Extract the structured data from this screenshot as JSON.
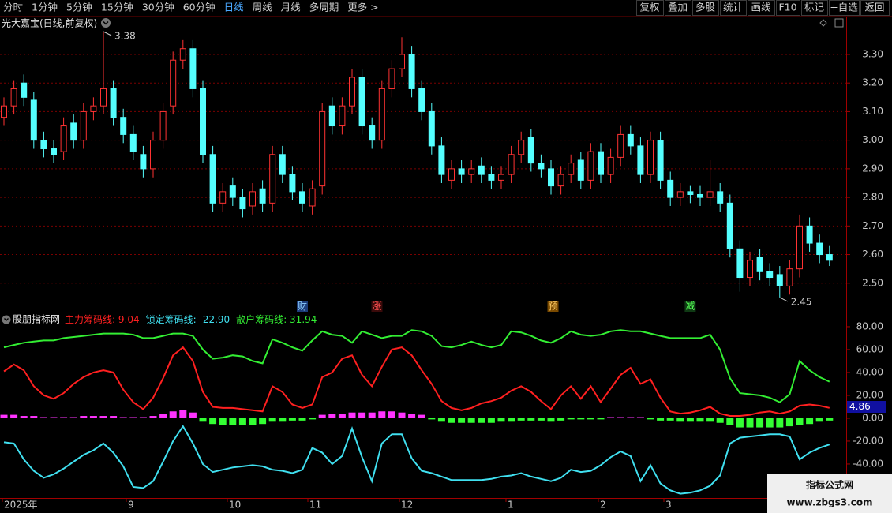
{
  "toolbar": {
    "left": [
      "分时",
      "1分钟",
      "5分钟",
      "15分钟",
      "30分钟",
      "60分钟",
      "日线",
      "周线",
      "月线",
      "多周期",
      "更多 >"
    ],
    "right": [
      "复权",
      "叠加",
      "多股",
      "统计",
      "画线",
      "F10",
      "标记",
      "+自选",
      "返回"
    ]
  },
  "chart_data": [
    {
      "type": "candlestick",
      "title": "光大嘉宝(日线,前复权)",
      "up_color": "#ff3232",
      "down_color": "#54ffff",
      "grid": true,
      "ylim": [
        2.4,
        3.38
      ],
      "yticks": [
        {
          "value": 2.5,
          "label": "2.50"
        },
        {
          "value": 2.6,
          "label": "2.60"
        },
        {
          "value": 2.7,
          "label": "2.70"
        },
        {
          "value": 2.8,
          "label": "2.80"
        },
        {
          "value": 2.9,
          "label": "2.90"
        },
        {
          "value": 3.0,
          "label": "3.00"
        },
        {
          "value": 3.1,
          "label": "3.10"
        },
        {
          "value": 3.2,
          "label": "3.20"
        },
        {
          "value": 3.3,
          "label": "3.30"
        }
      ],
      "open": [
        3.08,
        3.12,
        3.2,
        3.14,
        3.0,
        2.97,
        2.96,
        3.06,
        3.0,
        3.1,
        3.12,
        3.18,
        3.08,
        3.02,
        2.95,
        2.9,
        3.0,
        3.12,
        3.28,
        3.32,
        3.18,
        2.95,
        2.78,
        2.84,
        2.8,
        2.77,
        2.83,
        2.78,
        2.95,
        2.88,
        2.82,
        2.77,
        2.84,
        3.12,
        3.05,
        3.12,
        3.22,
        3.05,
        3.0,
        3.18,
        3.25,
        3.3,
        3.18,
        3.1,
        2.98,
        2.86,
        2.9,
        2.88,
        2.91,
        2.88,
        2.86,
        2.88,
        2.95,
        3.01,
        2.92,
        2.9,
        2.84,
        2.88,
        2.93,
        2.86,
        2.96,
        2.88,
        2.94,
        3.02,
        2.98,
        2.88,
        3.0,
        2.86,
        2.8,
        2.82,
        2.81,
        2.8,
        2.82,
        2.78,
        2.62,
        2.52,
        2.59,
        2.54,
        2.53,
        2.49,
        2.55,
        2.7,
        2.64,
        2.6
      ],
      "high": [
        3.15,
        3.21,
        3.23,
        3.17,
        3.03,
        3.0,
        3.08,
        3.09,
        3.13,
        3.15,
        3.38,
        3.21,
        3.11,
        3.05,
        2.98,
        3.03,
        3.13,
        3.31,
        3.35,
        3.35,
        3.21,
        2.98,
        2.85,
        2.87,
        2.83,
        2.85,
        2.86,
        2.98,
        2.98,
        2.91,
        2.85,
        2.86,
        3.13,
        3.15,
        3.15,
        3.25,
        3.25,
        3.08,
        3.21,
        3.28,
        3.36,
        3.33,
        3.21,
        3.13,
        3.01,
        2.93,
        2.93,
        2.93,
        2.94,
        2.91,
        2.91,
        2.98,
        3.03,
        3.04,
        2.95,
        2.93,
        2.91,
        2.95,
        2.96,
        2.99,
        2.99,
        2.97,
        3.05,
        3.05,
        3.01,
        3.03,
        3.03,
        2.89,
        2.85,
        2.84,
        2.84,
        2.93,
        2.85,
        2.81,
        2.65,
        2.61,
        2.62,
        2.57,
        2.56,
        2.58,
        2.74,
        2.73,
        2.67,
        2.63
      ],
      "low": [
        3.05,
        3.09,
        3.12,
        2.97,
        2.94,
        2.92,
        2.93,
        2.97,
        2.97,
        3.07,
        3.09,
        3.05,
        2.99,
        2.93,
        2.87,
        2.87,
        2.97,
        3.09,
        3.25,
        3.15,
        2.92,
        2.75,
        2.75,
        2.77,
        2.73,
        2.74,
        2.75,
        2.75,
        2.85,
        2.79,
        2.75,
        2.74,
        2.81,
        3.02,
        3.02,
        3.09,
        3.02,
        2.97,
        2.97,
        3.15,
        3.22,
        3.15,
        3.07,
        2.95,
        2.85,
        2.83,
        2.85,
        2.85,
        2.85,
        2.83,
        2.83,
        2.85,
        2.92,
        2.89,
        2.87,
        2.81,
        2.81,
        2.85,
        2.83,
        2.83,
        2.85,
        2.85,
        2.91,
        2.95,
        2.85,
        2.85,
        2.83,
        2.77,
        2.77,
        2.78,
        2.77,
        2.77,
        2.75,
        2.59,
        2.47,
        2.49,
        2.51,
        2.49,
        2.45,
        2.46,
        2.52,
        2.61,
        2.57,
        2.56
      ],
      "close": [
        3.12,
        3.18,
        3.15,
        3.0,
        2.97,
        2.95,
        3.05,
        3.0,
        3.1,
        3.12,
        3.18,
        3.08,
        3.02,
        2.96,
        2.9,
        3.0,
        3.1,
        3.28,
        3.32,
        3.18,
        2.95,
        2.78,
        2.82,
        2.8,
        2.76,
        2.82,
        2.78,
        2.95,
        2.88,
        2.82,
        2.78,
        2.83,
        3.1,
        3.05,
        3.12,
        3.22,
        3.05,
        3.0,
        3.18,
        3.25,
        3.3,
        3.18,
        3.1,
        2.98,
        2.88,
        2.9,
        2.88,
        2.9,
        2.88,
        2.86,
        2.88,
        2.95,
        3.0,
        2.92,
        2.9,
        2.84,
        2.88,
        2.92,
        2.86,
        2.96,
        2.88,
        2.94,
        3.02,
        2.98,
        2.88,
        3.0,
        2.86,
        2.8,
        2.82,
        2.81,
        2.8,
        2.82,
        2.78,
        2.62,
        2.52,
        2.58,
        2.54,
        2.52,
        2.49,
        2.55,
        2.7,
        2.64,
        2.6,
        2.58
      ],
      "max_label": 3.38,
      "min_label": 2.45,
      "events": [
        "财",
        "涨",
        "预",
        "减"
      ]
    },
    {
      "type": "line",
      "title": "股朋指标网",
      "grid": false,
      "ylim": [
        -69,
        91
      ],
      "yticks": [
        {
          "value": -40,
          "label": "-40.00"
        },
        {
          "value": -20,
          "label": "-20.00"
        },
        {
          "value": 0,
          "label": "0.00"
        },
        {
          "value": 20,
          "label": "20.00"
        },
        {
          "value": 40,
          "label": "40.00"
        },
        {
          "value": 60,
          "label": "60.00"
        },
        {
          "value": 80,
          "label": "80.00"
        }
      ],
      "series": [
        {
          "name": "主力筹码线",
          "color": "#ff2020",
          "current": 9.04,
          "values": [
            41,
            47,
            42,
            28,
            20,
            17,
            22,
            30,
            36,
            40,
            42,
            40,
            25,
            14,
            8,
            18,
            35,
            55,
            62,
            50,
            23,
            10,
            9,
            9,
            8,
            7,
            6,
            28,
            23,
            12,
            9,
            12,
            36,
            40,
            52,
            55,
            38,
            28,
            45,
            60,
            62,
            55,
            42,
            30,
            15,
            9,
            7,
            9,
            13,
            15,
            18,
            24,
            28,
            23,
            15,
            8,
            20,
            28,
            17,
            28,
            14,
            26,
            38,
            44,
            30,
            34,
            18,
            6,
            4,
            5,
            7,
            10,
            4,
            2,
            2,
            3,
            5,
            6,
            4,
            6,
            11,
            12,
            11,
            9.04
          ]
        },
        {
          "name": "锁定筹码线",
          "color": "#40e0f0",
          "current": {
            "value": -22.9,
            "label": "-22.90"
          },
          "values": [
            -21,
            -22,
            -36,
            -46,
            -52,
            -49,
            -44,
            -38,
            -32,
            -28,
            -22,
            -30,
            -42,
            -60,
            -61,
            -55,
            -38,
            -20,
            -7,
            -22,
            -40,
            -47,
            -45,
            -43,
            -42,
            -41,
            -42,
            -45,
            -46,
            -48,
            -45,
            -26,
            -30,
            -40,
            -33,
            -9,
            -34,
            -55,
            -22,
            -14,
            -14,
            -35,
            -46,
            -48,
            -51,
            -54,
            -54,
            -54,
            -54,
            -53,
            -51,
            -50,
            -48,
            -51,
            -53,
            -55,
            -52,
            -45,
            -47,
            -46,
            -41,
            -34,
            -29,
            -33,
            -55,
            -41,
            -57,
            -63,
            -66,
            -65,
            -63,
            -59,
            -50,
            -22,
            -17,
            -16,
            -15,
            -14,
            -14,
            -16,
            -36,
            -30,
            -26,
            -22.9
          ]
        },
        {
          "name": "散户筹码线",
          "color": "#33ee33",
          "current": 31.94,
          "values": [
            62,
            64,
            66,
            67,
            68,
            68,
            70,
            71,
            72,
            73,
            74,
            74,
            74,
            73,
            70,
            70,
            72,
            74,
            74,
            72,
            60,
            52,
            53,
            55,
            54,
            50,
            48,
            69,
            66,
            62,
            59,
            68,
            76,
            73,
            72,
            66,
            76,
            73,
            70,
            72,
            72,
            77,
            76,
            72,
            63,
            62,
            64,
            67,
            64,
            62,
            64,
            76,
            75,
            72,
            68,
            66,
            70,
            76,
            73,
            72,
            73,
            76,
            77,
            76,
            76,
            74,
            72,
            70,
            70,
            70,
            70,
            73,
            60,
            35,
            22,
            21,
            20,
            18,
            14,
            21,
            50,
            42,
            36,
            31.94
          ]
        }
      ],
      "bars": {
        "pos_color": "#ff33ff",
        "neg_color": "#33ff33",
        "values": [
          3,
          3,
          2,
          2,
          1,
          1,
          1,
          1,
          2,
          2,
          2,
          2,
          1,
          1,
          1,
          2,
          4,
          6,
          7,
          5,
          -3,
          -5,
          -6,
          -6,
          -6,
          -6,
          -5,
          -3,
          -3,
          -2,
          -2,
          -1,
          3,
          4,
          4,
          5,
          5,
          5,
          6,
          6,
          5,
          4,
          3,
          -1,
          -3,
          -4,
          -4,
          -4,
          -4,
          -4,
          -3,
          -3,
          -2,
          -2,
          -2,
          -3,
          -2,
          -1,
          -1,
          -1,
          -1,
          1,
          1,
          1,
          1,
          -1,
          -2,
          -2,
          -3,
          -3,
          -3,
          -3,
          -4,
          -6,
          -8,
          -8,
          -8,
          -8,
          -8,
          -7,
          -6,
          -5,
          -3,
          -2
        ]
      },
      "cursor_label": "4.86",
      "x_labels": [
        "2025年",
        "9",
        "10",
        "11",
        "12",
        "1",
        "2",
        "3"
      ]
    }
  ],
  "watermark": {
    "title": "指标公式网",
    "url": "www.zbgs3.com"
  }
}
